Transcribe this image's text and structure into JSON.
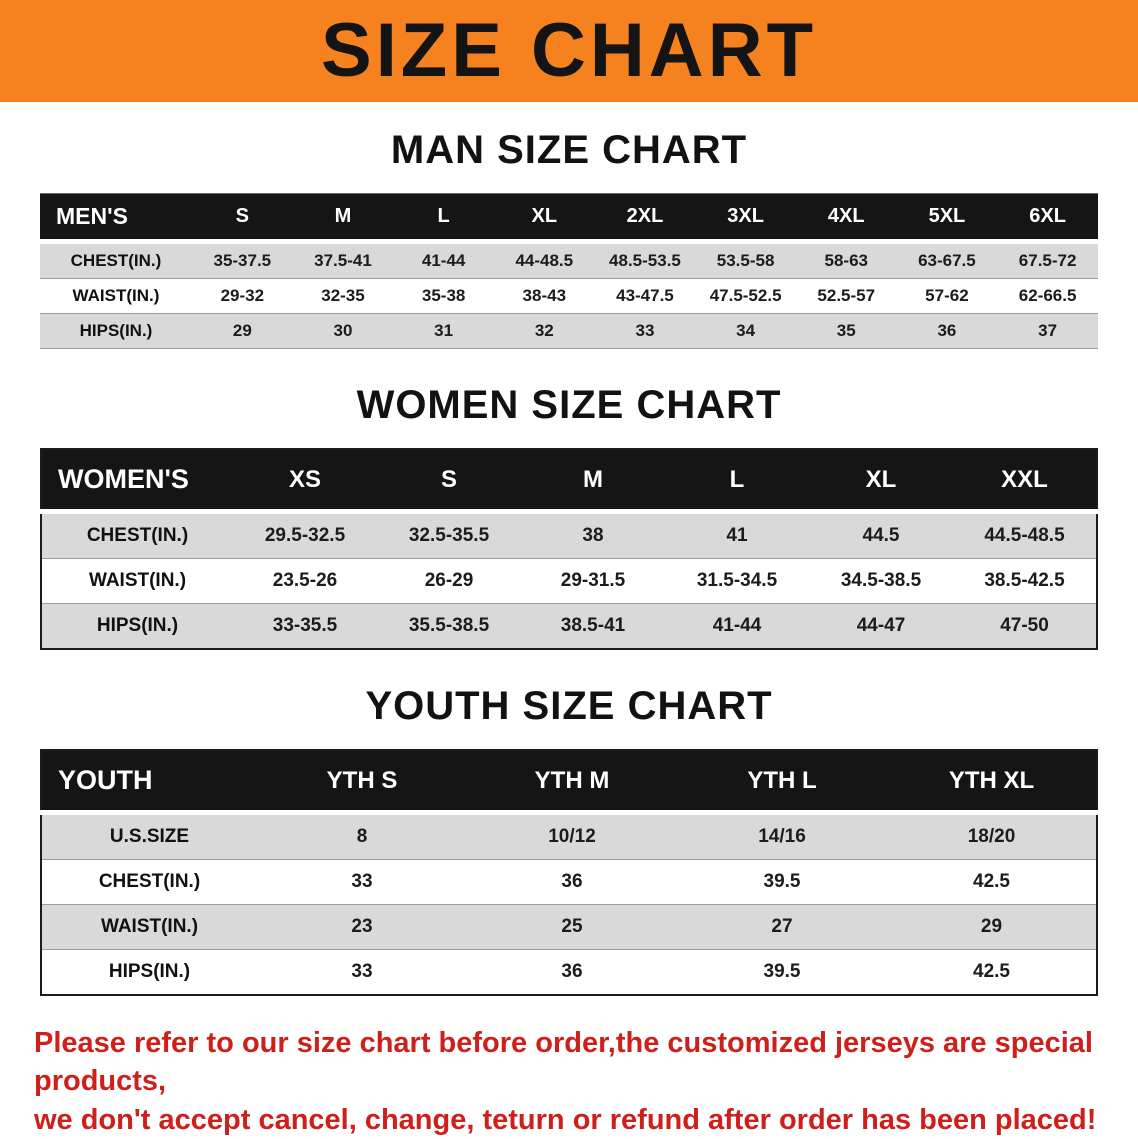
{
  "banner": {
    "title": "SIZE CHART"
  },
  "colors": {
    "banner_bg": "#f6821f",
    "header_bg": "#151515",
    "stripe": "#d9d9d9",
    "disclaimer_text": "#cf1f1b"
  },
  "sections": [
    {
      "heading": "MAN SIZE CHART",
      "table": {
        "header": [
          "MEN'S",
          "S",
          "M",
          "L",
          "XL",
          "2XL",
          "3XL",
          "4XL",
          "5XL",
          "6XL"
        ],
        "rows": [
          [
            "CHEST(IN.)",
            "35-37.5",
            "37.5-41",
            "41-44",
            "44-48.5",
            "48.5-53.5",
            "53.5-58",
            "58-63",
            "63-67.5",
            "67.5-72"
          ],
          [
            "WAIST(IN.)",
            "29-32",
            "32-35",
            "35-38",
            "38-43",
            "43-47.5",
            "47.5-52.5",
            "52.5-57",
            "57-62",
            "62-66.5"
          ],
          [
            "HIPS(IN.)",
            "29",
            "30",
            "31",
            "32",
            "33",
            "34",
            "35",
            "36",
            "37"
          ]
        ]
      }
    },
    {
      "heading": "WOMEN SIZE CHART",
      "table": {
        "header": [
          "WOMEN'S",
          "XS",
          "S",
          "M",
          "L",
          "XL",
          "XXL"
        ],
        "rows": [
          [
            "CHEST(IN.)",
            "29.5-32.5",
            "32.5-35.5",
            "38",
            "41",
            "44.5",
            "44.5-48.5"
          ],
          [
            "WAIST(IN.)",
            "23.5-26",
            "26-29",
            "29-31.5",
            "31.5-34.5",
            "34.5-38.5",
            "38.5-42.5"
          ],
          [
            "HIPS(IN.)",
            "33-35.5",
            "35.5-38.5",
            "38.5-41",
            "41-44",
            "44-47",
            "47-50"
          ]
        ]
      }
    },
    {
      "heading": "YOUTH SIZE CHART",
      "table": {
        "header": [
          "YOUTH",
          "YTH S",
          "YTH M",
          "YTH L",
          "YTH XL"
        ],
        "rows": [
          [
            "U.S.SIZE",
            "8",
            "10/12",
            "14/16",
            "18/20"
          ],
          [
            "CHEST(IN.)",
            "33",
            "36",
            "39.5",
            "42.5"
          ],
          [
            "WAIST(IN.)",
            "23",
            "25",
            "27",
            "29"
          ],
          [
            "HIPS(IN.)",
            "33",
            "36",
            "39.5",
            "42.5"
          ]
        ]
      }
    }
  ],
  "disclaimer": {
    "lines": [
      "Please refer to our size chart before order,the customized jerseys are special products,",
      "we don't accept cancel, change, teturn or refund after order has been placed!"
    ]
  }
}
